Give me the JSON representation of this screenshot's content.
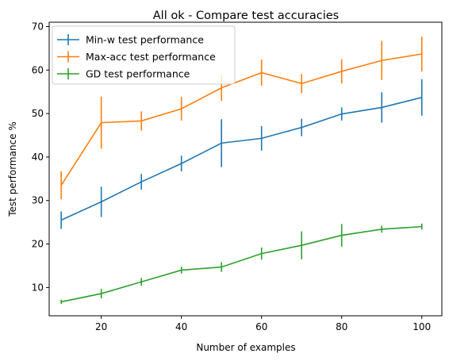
{
  "chart_data": {
    "type": "line",
    "title": "All ok - Compare test accuracies",
    "xlabel": "Number of examples",
    "ylabel": "Test performance %",
    "xlim": [
      7,
      105
    ],
    "ylim": [
      3.5,
      71
    ],
    "xticks": [
      20,
      40,
      60,
      80,
      100
    ],
    "yticks": [
      10,
      20,
      30,
      40,
      50,
      60,
      70
    ],
    "grid": false,
    "legend_position": "upper-left",
    "x": [
      10,
      20,
      30,
      40,
      50,
      60,
      70,
      80,
      90,
      100
    ],
    "series": [
      {
        "name": "Min-w test performance",
        "color": "#1f77b4",
        "values": [
          25.5,
          29.7,
          34.3,
          38.5,
          43.2,
          44.3,
          46.8,
          49.9,
          51.4,
          53.7
        ],
        "errors": [
          2.0,
          3.5,
          1.8,
          1.8,
          5.5,
          2.8,
          2.0,
          1.5,
          3.5,
          4.2
        ]
      },
      {
        "name": "Max-acc test performance",
        "color": "#ff7f0e",
        "values": [
          33.5,
          47.9,
          48.3,
          51.1,
          55.9,
          59.4,
          56.9,
          59.7,
          62.2,
          63.7
        ],
        "errors": [
          3.2,
          6.0,
          2.2,
          2.7,
          3.0,
          3.0,
          2.2,
          2.8,
          4.5,
          4.0
        ]
      },
      {
        "name": "GD test performance",
        "color": "#2ca02c",
        "values": [
          6.7,
          8.6,
          11.3,
          14.0,
          14.7,
          17.8,
          19.7,
          22.0,
          23.4,
          24.0
        ],
        "errors": [
          0.5,
          1.1,
          0.9,
          0.8,
          1.1,
          1.4,
          3.2,
          2.6,
          0.8,
          0.7
        ]
      }
    ]
  }
}
